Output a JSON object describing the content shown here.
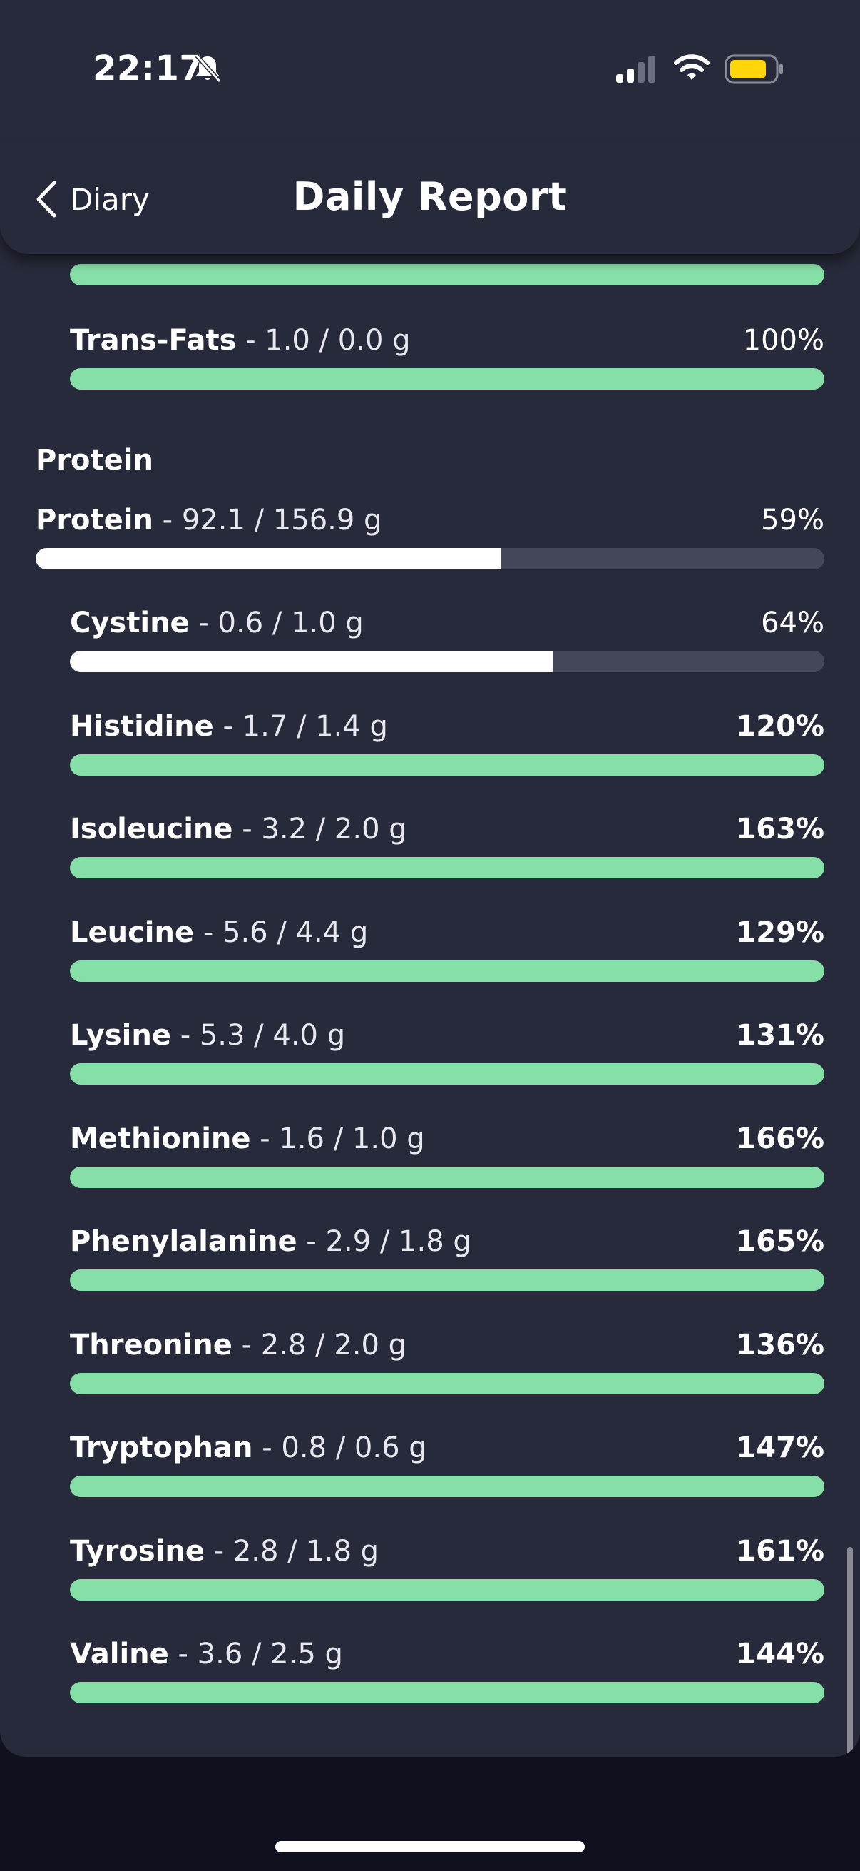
{
  "status_bar": {
    "time": "22:17",
    "icons": [
      "bell-slash-icon",
      "signal-icon",
      "wifi-icon",
      "battery-icon"
    ],
    "battery_color": "#ffd60a"
  },
  "nav": {
    "back_label": "Diary",
    "title": "Daily Report"
  },
  "colors": {
    "card": "#272a3a",
    "good_bar": "#86dfa6",
    "partial_bar": "#ffffff",
    "track": "#44475a"
  },
  "top_partial_row": {
    "progress_percent": 100
  },
  "fats_rows": [
    {
      "name": "Trans-Fats",
      "amount": " - 1.0 / 0.0 g",
      "percent": "100%",
      "bold_percent": false,
      "progress_percent": 100,
      "status": "good"
    }
  ],
  "protein_section": {
    "title": "Protein",
    "total": {
      "name": "Protein",
      "amount": " - 92.1 / 156.9 g",
      "percent": "59%",
      "bold_percent": false,
      "progress_percent": 59,
      "status": "partial"
    },
    "amino_acids": [
      {
        "name": "Cystine",
        "amount": " - 0.6 / 1.0 g",
        "percent": "64%",
        "bold_percent": false,
        "progress_percent": 64,
        "status": "partial"
      },
      {
        "name": "Histidine",
        "amount": " - 1.7 / 1.4 g",
        "percent": "120%",
        "bold_percent": true,
        "progress_percent": 120,
        "status": "good"
      },
      {
        "name": "Isoleucine",
        "amount": " - 3.2 / 2.0 g",
        "percent": "163%",
        "bold_percent": true,
        "progress_percent": 163,
        "status": "good"
      },
      {
        "name": "Leucine",
        "amount": " - 5.6 / 4.4 g",
        "percent": "129%",
        "bold_percent": true,
        "progress_percent": 129,
        "status": "good"
      },
      {
        "name": "Lysine",
        "amount": " - 5.3 / 4.0 g",
        "percent": "131%",
        "bold_percent": true,
        "progress_percent": 131,
        "status": "good"
      },
      {
        "name": "Methionine",
        "amount": " - 1.6 / 1.0 g",
        "percent": "166%",
        "bold_percent": true,
        "progress_percent": 166,
        "status": "good"
      },
      {
        "name": "Phenylalanine",
        "amount": " - 2.9 / 1.8 g",
        "percent": "165%",
        "bold_percent": true,
        "progress_percent": 165,
        "status": "good"
      },
      {
        "name": "Threonine",
        "amount": " - 2.8 / 2.0 g",
        "percent": "136%",
        "bold_percent": true,
        "progress_percent": 136,
        "status": "good"
      },
      {
        "name": "Tryptophan",
        "amount": " - 0.8 / 0.6 g",
        "percent": "147%",
        "bold_percent": true,
        "progress_percent": 147,
        "status": "good"
      },
      {
        "name": "Tyrosine",
        "amount": " - 2.8 / 1.8 g",
        "percent": "161%",
        "bold_percent": true,
        "progress_percent": 161,
        "status": "good"
      },
      {
        "name": "Valine",
        "amount": " - 3.6 / 2.5 g",
        "percent": "144%",
        "bold_percent": true,
        "progress_percent": 144,
        "status": "good"
      }
    ]
  }
}
